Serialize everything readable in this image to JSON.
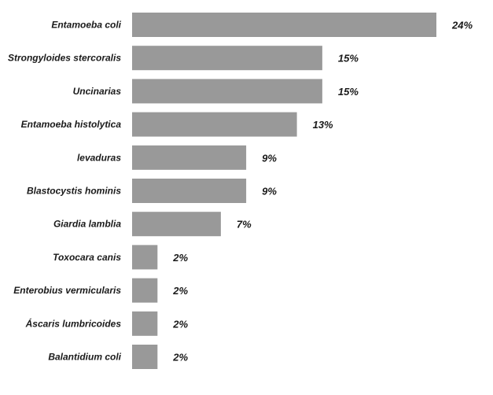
{
  "chart_data": {
    "type": "bar",
    "orientation": "horizontal",
    "title": "",
    "xlabel": "",
    "ylabel": "",
    "categories": [
      "Entamoeba coli",
      "Strongyloides stercoralis",
      "Uncinarias",
      "Entamoeba histolytica",
      "levaduras",
      "Blastocystis hominis",
      "Giardia lamblia",
      "Toxocara canis",
      "Enterobius vermicularis",
      "Áscaris lumbricoides",
      "Balantidium coli"
    ],
    "values": [
      24,
      15,
      15,
      13,
      9,
      9,
      7,
      2,
      2,
      2,
      2
    ],
    "value_labels": [
      "24%",
      "15%",
      "15%",
      "13%",
      "9%",
      "9%",
      "7%",
      "2%",
      "2%",
      "2%",
      "2%"
    ],
    "xlim": [
      0,
      24
    ],
    "grid": false,
    "legend": "none",
    "bar_color": "#999999"
  }
}
